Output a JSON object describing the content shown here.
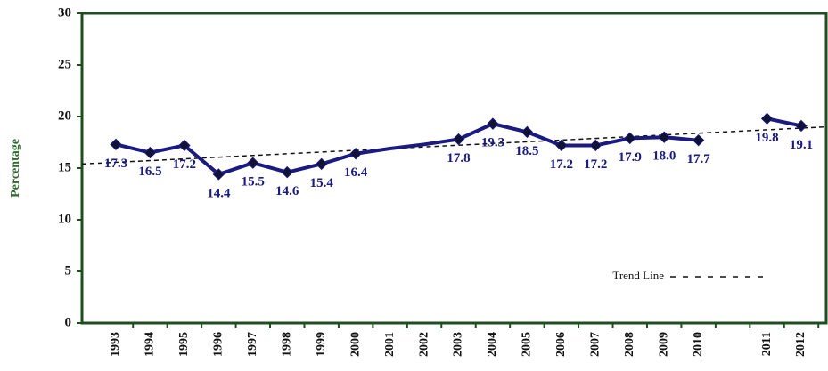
{
  "chart_data": {
    "type": "line",
    "y_label": "Percentage",
    "categories": [
      "1993",
      "1994",
      "1995",
      "1996",
      "1997",
      "1998",
      "1999",
      "2000",
      "2001",
      "2002",
      "2003",
      "2004",
      "2005",
      "2006",
      "2007",
      "2008",
      "2009",
      "2010",
      null,
      "2011",
      "2012"
    ],
    "series": [
      {
        "color": "#1a1a80",
        "values": [
          17.3,
          16.5,
          17.2,
          14.4,
          15.5,
          14.6,
          15.4,
          16.4,
          16.9,
          17.3,
          17.8,
          19.3,
          18.5,
          17.2,
          17.2,
          17.9,
          18.0,
          17.7,
          null,
          19.8,
          19.1
        ],
        "value_labels": [
          "17.3",
          "16.5",
          "17.2",
          "14.4",
          "15.5",
          "14.6",
          "15.4",
          "16.4",
          null,
          null,
          "17.8",
          "19.3",
          "18.5",
          "17.2",
          "17.2",
          "17.9",
          "18.0",
          "17.7",
          null,
          "19.8",
          "19.1"
        ]
      }
    ],
    "trend_line": {
      "name": "Trend Line",
      "values": [
        15.4,
        19.0
      ]
    },
    "ylim": [
      0,
      30
    ],
    "yticks": [
      0,
      5,
      10,
      15,
      20,
      25,
      30
    ],
    "grid": false
  }
}
